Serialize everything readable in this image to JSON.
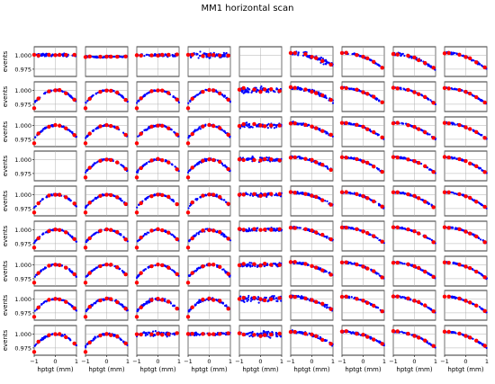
{
  "figure": {
    "title": "MM1 horizontal scan"
  },
  "chart_data": {
    "type": "scatter",
    "title": "MM1 horizontal scan",
    "grid": {
      "rows": 9,
      "cols": 9
    },
    "xlabel": "hptgt (mm)",
    "ylabel": "events",
    "xlim": [
      -1,
      1
    ],
    "ylim": [
      0.962,
      1.015
    ],
    "xticks": [
      -1,
      0,
      1
    ],
    "yticks": [
      0.975,
      1.0
    ],
    "ytick_labels": [
      "0.975",
      "1.000"
    ],
    "xtick_labels": [
      "−1",
      "0",
      "1"
    ],
    "grid_lines": true,
    "series": [
      {
        "color": "#0000ff",
        "marker": "small-dot"
      },
      {
        "color": "#ff0000",
        "marker": "large-dot"
      }
    ],
    "empty_panels": [
      [
        0,
        4
      ],
      [
        3,
        0
      ]
    ],
    "panels": [
      [
        {
          "shape": "flat",
          "level": 1.0,
          "noise": 0.004
        },
        {
          "shape": "flat",
          "level": 0.997,
          "noise": 0.002
        },
        {
          "shape": "flat",
          "level": 1.0,
          "noise": 0.003
        },
        {
          "shape": "flat",
          "level": 1.0,
          "noise": 0.007
        },
        null,
        {
          "shape": "slope",
          "level": 1.0,
          "noise": 0.007
        },
        {
          "shape": "drop",
          "level": 1.0,
          "noise": 0.002
        },
        {
          "shape": "drop",
          "level": 0.998,
          "noise": 0.004
        },
        {
          "shape": "drop",
          "level": 1.0,
          "noise": 0.003
        }
      ],
      [
        {
          "shape": "arc",
          "level": 1.0,
          "noise": 0.002
        },
        {
          "shape": "arc",
          "level": 1.0,
          "noise": 0.002
        },
        {
          "shape": "arc",
          "level": 1.0,
          "noise": 0.002
        },
        {
          "shape": "arc",
          "level": 1.0,
          "noise": 0.003
        },
        {
          "shape": "flat",
          "level": 1.0,
          "noise": 0.008
        },
        {
          "shape": "slope",
          "level": 1.0,
          "noise": 0.004
        },
        {
          "shape": "drop",
          "level": 1.0,
          "noise": 0.002
        },
        {
          "shape": "drop",
          "level": 1.0,
          "noise": 0.002
        },
        {
          "shape": "drop",
          "level": 1.0,
          "noise": 0.002
        }
      ],
      [
        {
          "shape": "arc",
          "level": 1.0,
          "noise": 0.002
        },
        {
          "shape": "arc",
          "level": 1.0,
          "noise": 0.002
        },
        {
          "shape": "arc",
          "level": 1.0,
          "noise": 0.002
        },
        {
          "shape": "arc",
          "level": 1.0,
          "noise": 0.003
        },
        {
          "shape": "flat",
          "level": 1.0,
          "noise": 0.006
        },
        {
          "shape": "slope",
          "level": 1.0,
          "noise": 0.003
        },
        {
          "shape": "drop",
          "level": 1.0,
          "noise": 0.002
        },
        {
          "shape": "drop",
          "level": 1.0,
          "noise": 0.002
        },
        {
          "shape": "drop",
          "level": 1.0,
          "noise": 0.002
        }
      ],
      [
        null,
        {
          "shape": "arc",
          "level": 1.0,
          "noise": 0.002
        },
        {
          "shape": "arc",
          "level": 1.0,
          "noise": 0.002
        },
        {
          "shape": "arc",
          "level": 1.0,
          "noise": 0.003
        },
        {
          "shape": "flat",
          "level": 1.0,
          "noise": 0.006
        },
        {
          "shape": "slope",
          "level": 1.0,
          "noise": 0.003
        },
        {
          "shape": "drop",
          "level": 1.0,
          "noise": 0.002
        },
        {
          "shape": "drop",
          "level": 1.0,
          "noise": 0.002
        },
        {
          "shape": "drop",
          "level": 1.0,
          "noise": 0.002
        }
      ],
      [
        {
          "shape": "arc",
          "level": 1.0,
          "noise": 0.002
        },
        {
          "shape": "arc",
          "level": 1.0,
          "noise": 0.002
        },
        {
          "shape": "arc",
          "level": 1.0,
          "noise": 0.002
        },
        {
          "shape": "arc",
          "level": 1.0,
          "noise": 0.003
        },
        {
          "shape": "flat",
          "level": 1.0,
          "noise": 0.005
        },
        {
          "shape": "slope",
          "level": 1.0,
          "noise": 0.003
        },
        {
          "shape": "drop",
          "level": 1.0,
          "noise": 0.002
        },
        {
          "shape": "drop",
          "level": 1.0,
          "noise": 0.002
        },
        {
          "shape": "drop",
          "level": 1.0,
          "noise": 0.002
        }
      ],
      [
        {
          "shape": "arc",
          "level": 1.0,
          "noise": 0.002
        },
        {
          "shape": "arc",
          "level": 1.0,
          "noise": 0.002
        },
        {
          "shape": "arc",
          "level": 1.0,
          "noise": 0.002
        },
        {
          "shape": "arc",
          "level": 1.0,
          "noise": 0.003
        },
        {
          "shape": "flat",
          "level": 1.0,
          "noise": 0.005
        },
        {
          "shape": "slope",
          "level": 1.0,
          "noise": 0.003
        },
        {
          "shape": "drop",
          "level": 1.0,
          "noise": 0.002
        },
        {
          "shape": "drop",
          "level": 1.0,
          "noise": 0.002
        },
        {
          "shape": "drop",
          "level": 1.0,
          "noise": 0.002
        }
      ],
      [
        {
          "shape": "arc",
          "level": 1.0,
          "noise": 0.002
        },
        {
          "shape": "arc",
          "level": 1.0,
          "noise": 0.002
        },
        {
          "shape": "arc",
          "level": 1.0,
          "noise": 0.002
        },
        {
          "shape": "arc",
          "level": 1.0,
          "noise": 0.003
        },
        {
          "shape": "flat",
          "level": 1.0,
          "noise": 0.005
        },
        {
          "shape": "slope",
          "level": 1.0,
          "noise": 0.003
        },
        {
          "shape": "drop",
          "level": 1.0,
          "noise": 0.002
        },
        {
          "shape": "drop",
          "level": 1.0,
          "noise": 0.002
        },
        {
          "shape": "drop",
          "level": 1.0,
          "noise": 0.002
        }
      ],
      [
        {
          "shape": "arc",
          "level": 1.0,
          "noise": 0.002
        },
        {
          "shape": "arc",
          "level": 1.0,
          "noise": 0.003
        },
        {
          "shape": "arc",
          "level": 1.0,
          "noise": 0.004
        },
        {
          "shape": "arc",
          "level": 1.0,
          "noise": 0.004
        },
        {
          "shape": "flat",
          "level": 1.0,
          "noise": 0.008
        },
        {
          "shape": "slope",
          "level": 1.0,
          "noise": 0.004
        },
        {
          "shape": "drop",
          "level": 1.0,
          "noise": 0.002
        },
        {
          "shape": "drop",
          "level": 1.0,
          "noise": 0.002
        },
        {
          "shape": "drop",
          "level": 1.0,
          "noise": 0.002
        }
      ],
      [
        {
          "shape": "arc",
          "level": 1.0,
          "noise": 0.003
        },
        {
          "shape": "arc",
          "level": 1.0,
          "noise": 0.003
        },
        {
          "shape": "flat",
          "level": 1.0,
          "noise": 0.007
        },
        {
          "shape": "flat",
          "level": 1.0,
          "noise": 0.004
        },
        {
          "shape": "flat",
          "level": 1.0,
          "noise": 0.009
        },
        {
          "shape": "slope",
          "level": 1.0,
          "noise": 0.003
        },
        {
          "shape": "slope",
          "level": 1.0,
          "noise": 0.003
        },
        {
          "shape": "drop",
          "level": 1.0,
          "noise": 0.002
        },
        {
          "shape": "drop",
          "level": 1.0,
          "noise": 0.002
        }
      ]
    ]
  }
}
